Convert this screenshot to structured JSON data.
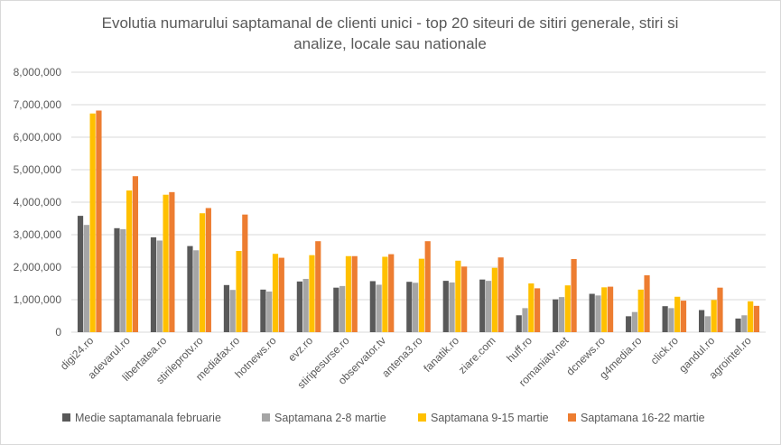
{
  "chart_data": {
    "type": "bar",
    "title_line1": "Evolutia numarului  saptamanal de clienti unici - top 20 siteuri de sitiri generale, stiri si",
    "title_line2": "analize, locale sau nationale",
    "categories": [
      "digi24.ro",
      "adevarul.ro",
      "libertatea.ro",
      "stirileprotv.ro",
      "mediafax.ro",
      "hotnews.ro",
      "evz.ro",
      "stiripesurse.ro",
      "observator.tv",
      "antena3.ro",
      "fanatik.ro",
      "ziare.com",
      "huff.ro",
      "romaniatv.net",
      "dcnews.ro",
      "g4media.ro",
      "click.ro",
      "gandul.ro",
      "agrointel.ro"
    ],
    "series": [
      {
        "name": "Medie saptamanala februarie",
        "color": "#595959",
        "values": [
          3580000,
          3200000,
          2920000,
          2650000,
          1450000,
          1310000,
          1560000,
          1370000,
          1570000,
          1550000,
          1580000,
          1620000,
          520000,
          1010000,
          1180000,
          490000,
          800000,
          680000,
          420000
        ]
      },
      {
        "name": "Saptamana 2-8 martie",
        "color": "#a5a5a5",
        "values": [
          3300000,
          3170000,
          2820000,
          2520000,
          1300000,
          1250000,
          1640000,
          1420000,
          1460000,
          1520000,
          1530000,
          1580000,
          740000,
          1080000,
          1130000,
          620000,
          740000,
          490000,
          520000
        ]
      },
      {
        "name": "Saptamana 9-15 martie",
        "color": "#ffc000",
        "values": [
          6730000,
          4360000,
          4230000,
          3660000,
          2500000,
          2410000,
          2370000,
          2340000,
          2320000,
          2260000,
          2200000,
          1980000,
          1500000,
          1440000,
          1380000,
          1310000,
          1090000,
          990000,
          950000
        ]
      },
      {
        "name": "Saptamana 16-22 martie",
        "color": "#ed7d31",
        "values": [
          6820000,
          4800000,
          4310000,
          3820000,
          3620000,
          2290000,
          2800000,
          2340000,
          2400000,
          2800000,
          2020000,
          2300000,
          1350000,
          2250000,
          1400000,
          1750000,
          970000,
          1370000,
          810000
        ]
      }
    ],
    "yticks": [
      "0",
      "1,000,000",
      "2,000,000",
      "3,000,000",
      "4,000,000",
      "5,000,000",
      "6,000,000",
      "7,000,000",
      "8,000,000"
    ],
    "ylim": [
      0,
      8000000
    ],
    "grid": true,
    "legend_position": "bottom"
  }
}
